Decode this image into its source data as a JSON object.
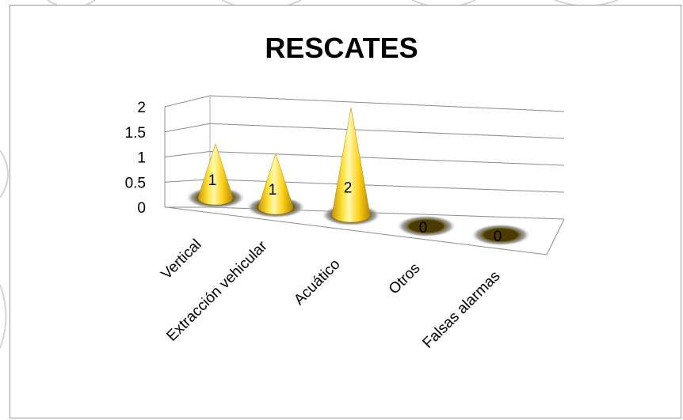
{
  "chart_data": {
    "type": "bar",
    "shape": "cone-3d",
    "title": "RESCATES",
    "categories": [
      "Vertical",
      "Extracción vehicular",
      "Acuático",
      "Otros",
      "Falsas alarmas"
    ],
    "values": [
      1,
      1,
      2,
      0,
      0
    ],
    "data_labels": [
      "1",
      "1",
      "2",
      "0",
      "0"
    ],
    "yticks": [
      "0",
      "0.5",
      "1",
      "1.5",
      "2"
    ],
    "ylim": [
      0,
      2
    ],
    "xlabel": "",
    "ylabel": "",
    "grid": true,
    "legend": "none",
    "colors": {
      "cone": "#ffd21a",
      "cone_light": "#fff5a0",
      "cone_dark": "#b48600",
      "base_shadow": "#4a3b00",
      "grid": "#8c8c8c",
      "frame": "#9a9a9a"
    }
  }
}
